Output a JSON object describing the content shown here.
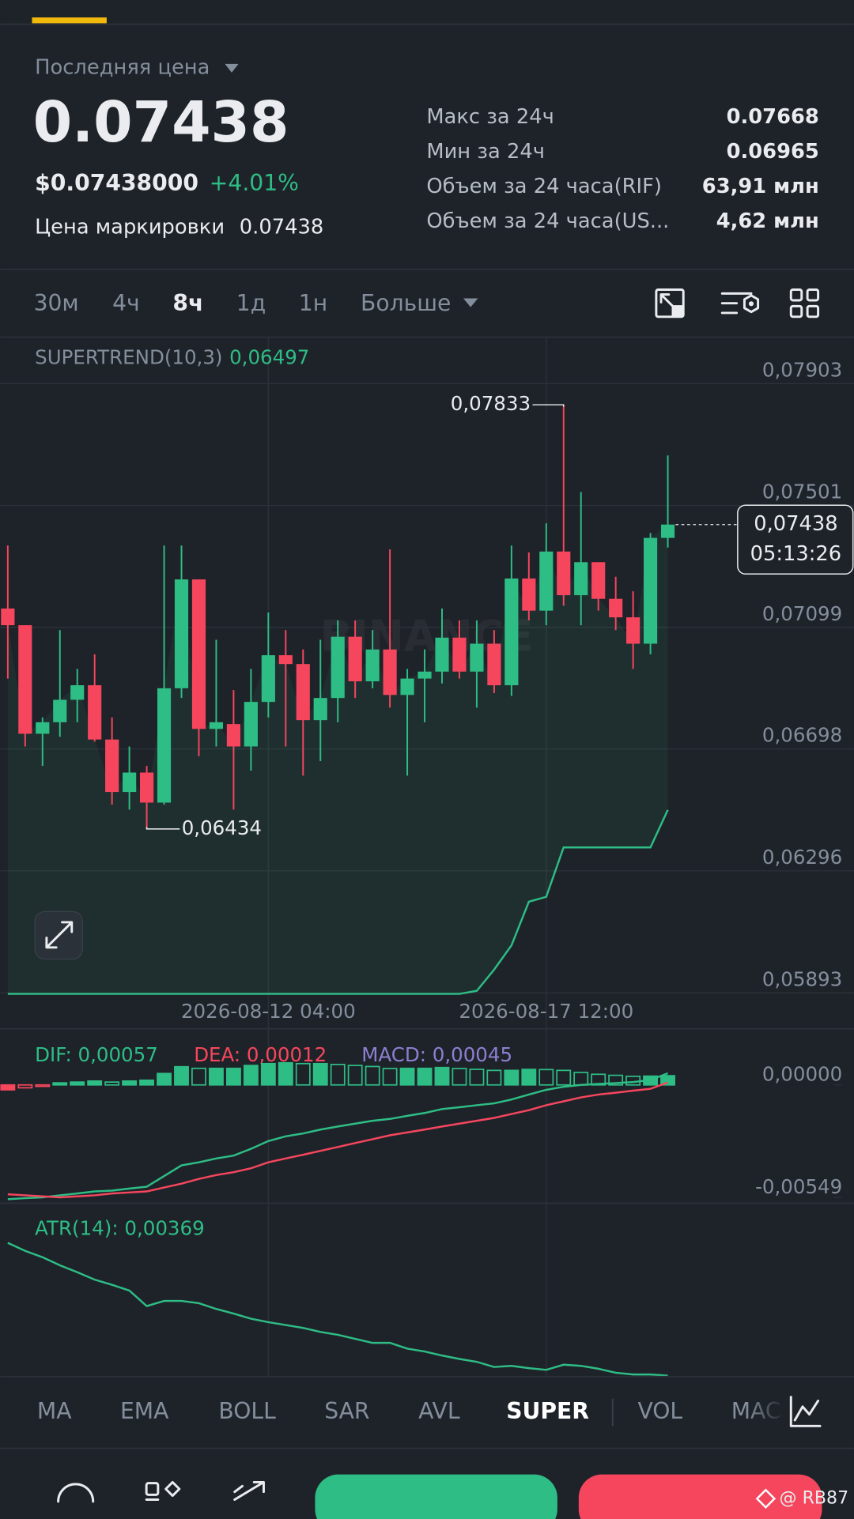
{
  "header": {
    "price_type": "Последняя цена",
    "last_price": "0.07438",
    "usd_price": "$0.07438000",
    "change": "+4.01%",
    "mark_price_label": "Цена маркировки",
    "mark_price": "0.07438",
    "stats": [
      {
        "label": "Макс за 24ч",
        "value": "0.07668"
      },
      {
        "label": "Мин за 24ч",
        "value": "0.06965"
      },
      {
        "label": "Объем за 24 часа(RIF)",
        "value": "63,91 млн"
      },
      {
        "label": "Объем за 24 часа(US...",
        "value": "4,62 млн"
      }
    ]
  },
  "timeframes": {
    "items": [
      "30м",
      "4ч",
      "8ч",
      "1д",
      "1н"
    ],
    "active": 2,
    "more": "Больше"
  },
  "indicators": {
    "items": [
      "MA",
      "EMA",
      "BOLL",
      "SAR",
      "AVL",
      "SUPER",
      "VOL",
      "MAC"
    ],
    "active": 5
  },
  "watermark": "@ RB87",
  "chart_data": [
    {
      "type": "candlestick",
      "categories": [
        null,
        null,
        null,
        null,
        null,
        null,
        null,
        null,
        null,
        null,
        null,
        null,
        null,
        null,
        null,
        "2026-08-12 04:00",
        null,
        null,
        null,
        null,
        null,
        null,
        null,
        null,
        null,
        null,
        null,
        null,
        null,
        null,
        null,
        "2026-08-17 12:00",
        null,
        null,
        null,
        null,
        null,
        null,
        null
      ],
      "open": [
        0.07161,
        0.07106,
        0.06748,
        0.06786,
        0.0686,
        0.06908,
        0.06729,
        0.06556,
        0.0662,
        0.06521,
        0.06898,
        0.07257,
        0.06764,
        0.0678,
        0.06706,
        0.06853,
        0.07007,
        0.06978,
        0.06793,
        0.06866,
        0.07068,
        0.06921,
        0.07026,
        0.06876,
        0.0693,
        0.06953,
        0.07065,
        0.06953,
        0.07045,
        0.06908,
        0.0726,
        0.07154,
        0.07349,
        0.07205,
        0.07314,
        0.07193,
        0.07132,
        0.07045,
        0.07394
      ],
      "high": [
        0.07369,
        0.07106,
        0.06802,
        0.0709,
        0.06962,
        0.0701,
        0.06802,
        0.06706,
        0.06642,
        0.07369,
        0.07369,
        0.07257,
        0.07058,
        0.06892,
        0.06962,
        0.07148,
        0.0709,
        0.07026,
        0.07058,
        0.07122,
        0.07122,
        0.0709,
        0.07356,
        0.06962,
        0.07026,
        0.07161,
        0.07122,
        0.07122,
        0.0709,
        0.07369,
        0.07346,
        0.07442,
        0.07833,
        0.07545,
        0.07314,
        0.07266,
        0.07218,
        0.0741,
        0.07666
      ],
      "low": [
        0.0693,
        0.06706,
        0.06642,
        0.06738,
        0.06786,
        0.06722,
        0.06514,
        0.06498,
        0.06434,
        0.06514,
        0.06866,
        0.06674,
        0.06706,
        0.06498,
        0.06626,
        0.06802,
        0.06706,
        0.0661,
        0.06658,
        0.06786,
        0.06866,
        0.06898,
        0.06834,
        0.0661,
        0.06786,
        0.06914,
        0.0693,
        0.06834,
        0.06882,
        0.06873,
        0.07122,
        0.07106,
        0.0717,
        0.07106,
        0.07154,
        0.0709,
        0.06962,
        0.0701,
        0.07362
      ],
      "close": [
        0.07106,
        0.06748,
        0.06786,
        0.0686,
        0.06908,
        0.06729,
        0.06556,
        0.0662,
        0.06521,
        0.06898,
        0.07257,
        0.06764,
        0.06786,
        0.06706,
        0.06853,
        0.07007,
        0.06978,
        0.06793,
        0.06866,
        0.07068,
        0.06921,
        0.07026,
        0.06876,
        0.0693,
        0.06953,
        0.07065,
        0.06953,
        0.07045,
        0.06908,
        0.0726,
        0.07154,
        0.07349,
        0.07205,
        0.07314,
        0.07193,
        0.07132,
        0.07045,
        0.07394,
        0.07438
      ],
      "up_color": "#2ebd85",
      "down_color": "#f6465d",
      "ylim": [
        0.05893,
        0.08053
      ],
      "yticks": [
        {
          "value": 0.07903,
          "label": "0,07903"
        },
        {
          "value": 0.07501,
          "label": "0,07501"
        },
        {
          "value": 0.07099,
          "label": "0,07099"
        },
        {
          "value": 0.06698,
          "label": "0,06698"
        },
        {
          "value": 0.06296,
          "label": "0,06296"
        },
        {
          "value": 0.05893,
          "label": "0,05893"
        }
      ],
      "grid": true,
      "supertrend": {
        "name": "SUPERTREND(10,3)",
        "value_label": "0,06497",
        "color": "#2ebd85",
        "values": [
          0.0589,
          0.0589,
          0.0589,
          0.0589,
          0.0589,
          0.0589,
          0.0589,
          0.0589,
          0.0589,
          0.0589,
          0.0589,
          0.0589,
          0.0589,
          0.0589,
          0.0589,
          0.0589,
          0.0589,
          0.0589,
          0.0589,
          0.0589,
          0.0589,
          0.0589,
          0.0589,
          0.0589,
          0.0589,
          0.0589,
          0.0589,
          0.059,
          0.0597,
          0.0605,
          0.06194,
          0.0621,
          0.06373,
          0.06373,
          0.06373,
          0.06373,
          0.06373,
          0.06373,
          0.06497
        ]
      },
      "high_label": {
        "value": 0.07833,
        "label": "0,07833"
      },
      "low_label": {
        "value": 0.06434,
        "label": "0,06434"
      },
      "last_price": {
        "value": 0.07438,
        "label": "0,07438"
      },
      "countdown": "05:13:26",
      "watermark": "BINANCE"
    },
    {
      "type": "macd",
      "ylim": [
        -0.00568,
        0.00274
      ],
      "yticks": [
        {
          "value": 0,
          "label": "0,00000"
        },
        {
          "value": -0.00549,
          "label": "-0,00549"
        }
      ],
      "up_color": "#2ebd85",
      "down_color": "#f6465d",
      "series": [
        {
          "legend": "DIF: 0,00057",
          "color": "#2ebd85",
          "kind": "line",
          "values": [
            -0.00558,
            -0.00553,
            -0.00549,
            -0.00539,
            -0.0053,
            -0.0052,
            -0.00516,
            -0.00506,
            -0.00497,
            -0.00445,
            -0.00393,
            -0.00378,
            -0.00359,
            -0.00345,
            -0.00312,
            -0.00274,
            -0.00251,
            -0.00237,
            -0.00218,
            -0.00203,
            -0.00189,
            -0.00175,
            -0.00166,
            -0.00151,
            -0.00137,
            -0.00118,
            -0.00109,
            -0.00099,
            -0.0009,
            -0.00071,
            -0.00047,
            -0.00024,
            -9e-05,
            0,
            5e-05,
            9e-05,
            0.00014,
            0.00024,
            0.00057
          ]
        },
        {
          "legend": "DEA: 0,00012",
          "color": "#f6465d",
          "kind": "line",
          "values": [
            -0.00534,
            -0.00539,
            -0.00544,
            -0.00549,
            -0.00544,
            -0.00539,
            -0.0053,
            -0.00525,
            -0.0052,
            -0.00501,
            -0.00482,
            -0.00459,
            -0.0044,
            -0.00426,
            -0.00407,
            -0.00378,
            -0.00359,
            -0.00341,
            -0.00322,
            -0.00303,
            -0.00284,
            -0.00265,
            -0.00246,
            -0.00232,
            -0.00218,
            -0.00203,
            -0.00189,
            -0.00175,
            -0.00161,
            -0.00142,
            -0.00123,
            -0.00099,
            -0.0008,
            -0.00061,
            -0.00047,
            -0.00038,
            -0.00028,
            -0.00019,
            0.00012
          ]
        },
        {
          "legend": "MACD: 0,00045",
          "color": "#8d7fd0",
          "kind": "histogram",
          "values": [
            -0.00024,
            -0.00014,
            -5e-05,
            0.0001,
            0.00014,
            0.00019,
            0.00014,
            0.00019,
            0.00023,
            0.00056,
            0.00089,
            0.00081,
            0.00081,
            0.00081,
            0.00095,
            0.00104,
            0.00108,
            0.00104,
            0.00104,
            0.001,
            0.00095,
            0.0009,
            0.0008,
            0.00081,
            0.00081,
            0.00085,
            0.0008,
            0.00076,
            0.00071,
            0.00071,
            0.00076,
            0.00075,
            0.00071,
            0.00061,
            0.00052,
            0.00047,
            0.00042,
            0.00043,
            0.00045
          ]
        }
      ]
    },
    {
      "type": "line",
      "ylim": [
        0.00369,
        0.00664
      ],
      "series": [
        {
          "legend": "ATR(14): 0,00369",
          "color": "#2ebd85",
          "values": [
            0.006,
            0.00586,
            0.00575,
            0.00561,
            0.00549,
            0.00536,
            0.00527,
            0.00517,
            0.0049,
            0.00499,
            0.00499,
            0.00495,
            0.00485,
            0.00477,
            0.00468,
            0.00462,
            0.00457,
            0.00452,
            0.00445,
            0.0044,
            0.00433,
            0.00426,
            0.00426,
            0.00416,
            0.00411,
            0.00404,
            0.00398,
            0.00393,
            0.00384,
            0.00386,
            0.00382,
            0.00379,
            0.00388,
            0.00386,
            0.00381,
            0.00374,
            0.00371,
            0.00371,
            0.00369
          ]
        }
      ]
    }
  ]
}
